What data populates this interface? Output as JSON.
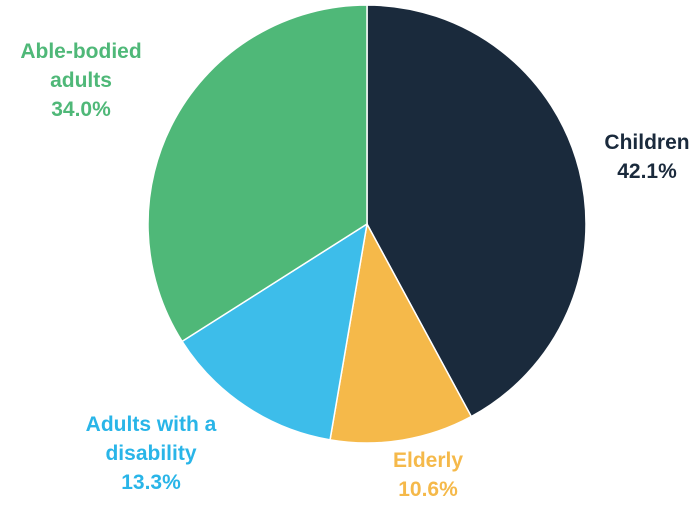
{
  "chart_data": {
    "type": "pie",
    "start_angle_deg": 0,
    "direction": "clockwise",
    "slices": [
      {
        "label_lines": [
          "Children"
        ],
        "value": 42.1,
        "value_label": "42.1%",
        "color": "#1a2a3c"
      },
      {
        "label_lines": [
          "Elderly"
        ],
        "value": 10.6,
        "value_label": "10.6%",
        "color": "#f5b94a"
      },
      {
        "label_lines": [
          "Adults with a",
          "disability"
        ],
        "value": 13.3,
        "value_label": "13.3%",
        "color": "#3dbdea"
      },
      {
        "label_lines": [
          "Able-bodied",
          "adults"
        ],
        "value": 34.0,
        "value_label": "34.0%",
        "color": "#4fb878"
      }
    ],
    "label_colors": {
      "Children": "#1a2a3c",
      "Elderly": "#f5b94a",
      "Adults with a disability": "#29b5e8",
      "Able-bodied adults": "#4fb878"
    },
    "legend": "none"
  }
}
